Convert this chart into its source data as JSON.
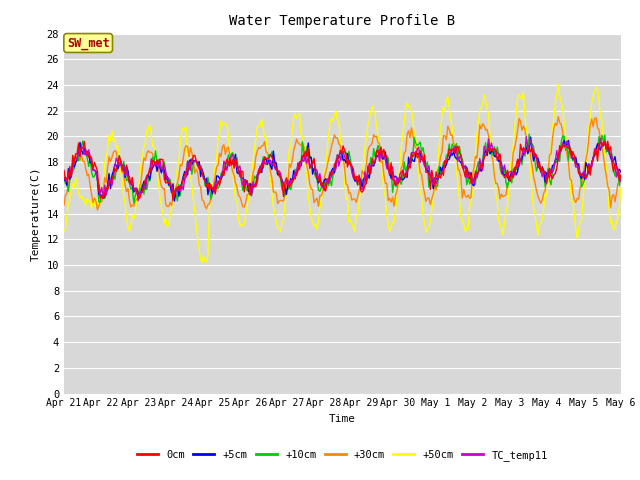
{
  "title": "Water Temperature Profile B",
  "xlabel": "Time",
  "ylabel": "Temperature(C)",
  "ylim": [
    0,
    28
  ],
  "yticks": [
    0,
    2,
    4,
    6,
    8,
    10,
    12,
    14,
    16,
    18,
    20,
    22,
    24,
    26,
    28
  ],
  "date_labels": [
    "Apr 21",
    "Apr 22",
    "Apr 23",
    "Apr 24",
    "Apr 25",
    "Apr 26",
    "Apr 27",
    "Apr 28",
    "Apr 29",
    "Apr 30",
    "May 1",
    "May 2",
    "May 3",
    "May 4",
    "May 5",
    "May 6"
  ],
  "legend_labels": [
    "0cm",
    "+5cm",
    "+10cm",
    "+30cm",
    "+50cm",
    "TC_temp11"
  ],
  "colors": [
    "#ff0000",
    "#0000ff",
    "#00cc00",
    "#ff8800",
    "#ffff00",
    "#cc00cc"
  ],
  "background_color": "#d8d8d8",
  "annotation_text": "SW_met",
  "annotation_color": "#aa0000",
  "annotation_bg": "#ffff99",
  "annotation_border": "#888800"
}
